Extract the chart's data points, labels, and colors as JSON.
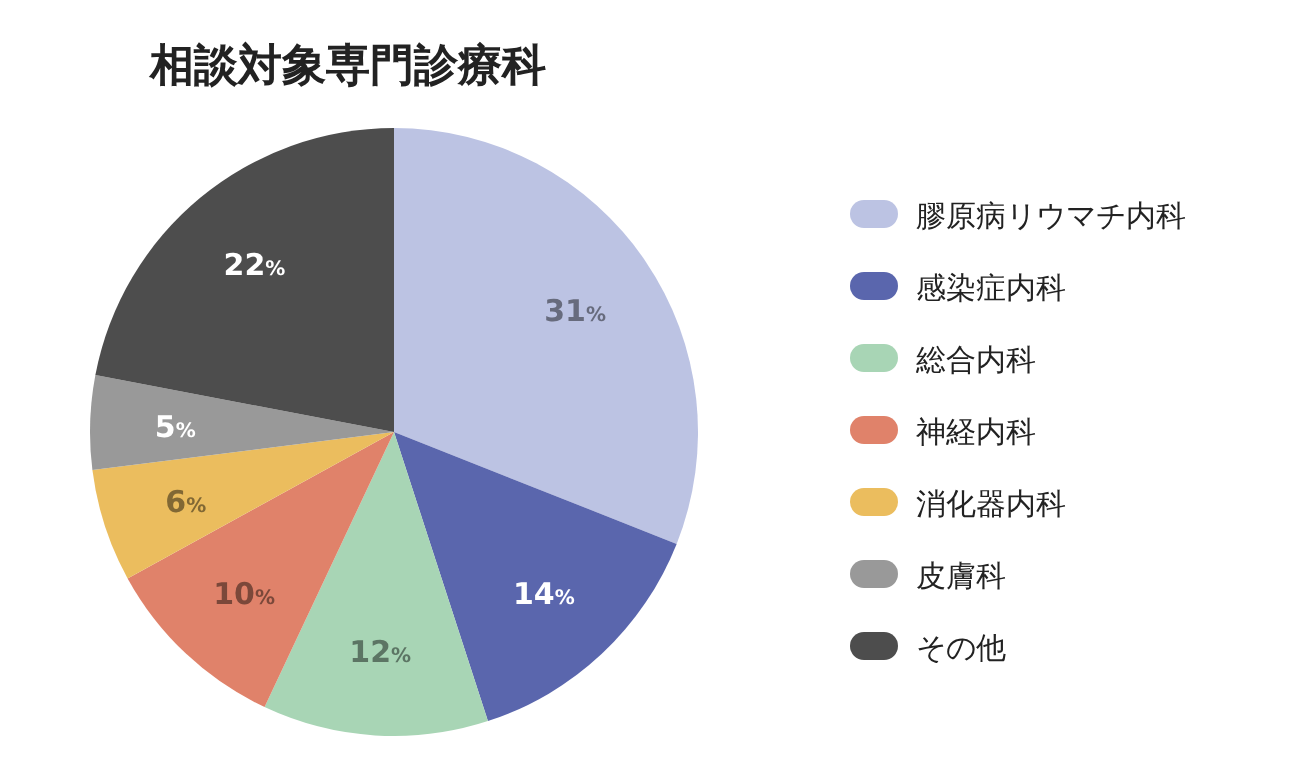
{
  "chart_data": {
    "type": "pie",
    "title": "相談対象専門診療科",
    "categories": [
      "膠原病リウマチ内科",
      "感染症内科",
      "総合内科",
      "神経内科",
      "消化器内科",
      "皮膚科",
      "その他"
    ],
    "values": [
      31,
      14,
      12,
      10,
      6,
      5,
      22
    ],
    "colors": [
      "#bcc3e3",
      "#5a66ad",
      "#a8d5b5",
      "#e0826a",
      "#ebbd5e",
      "#999999",
      "#4d4d4d"
    ],
    "value_labels": [
      "31%",
      "14%",
      "12%",
      "10%",
      "6%",
      "5%",
      "22%"
    ],
    "legend": "right"
  }
}
